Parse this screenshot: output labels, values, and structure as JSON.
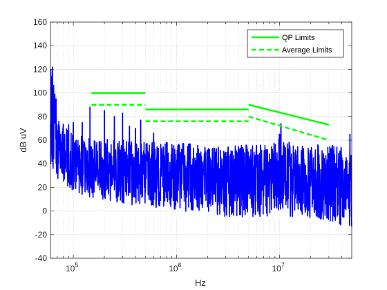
{
  "chart_data": {
    "type": "line",
    "title": "",
    "xlabel": "Hz",
    "ylabel": "dB uV",
    "x_scale": "log",
    "xlim": [
      60000,
      50000000
    ],
    "ylim": [
      -40,
      160
    ],
    "x_ticks": [
      {
        "value": 100000,
        "base": "10",
        "exp": "5"
      },
      {
        "value": 1000000,
        "base": "10",
        "exp": "6"
      },
      {
        "value": 10000000,
        "base": "10",
        "exp": "7"
      }
    ],
    "y_ticks": [
      -40,
      -20,
      0,
      20,
      40,
      60,
      80,
      100,
      120,
      140,
      160
    ],
    "grid": true,
    "legend_position": "top-right",
    "colors": {
      "measurement": "#0000ff",
      "limits": "#00ff00"
    },
    "series": [
      {
        "name": "QP Limits",
        "style": "solid",
        "segments": [
          [
            [
              150000,
              100
            ],
            [
              500000,
              100
            ]
          ],
          [
            [
              500000,
              86
            ],
            [
              5000000,
              86
            ]
          ],
          [
            [
              5000000,
              90
            ],
            [
              30000000,
              73
            ]
          ]
        ]
      },
      {
        "name": "Average Limits",
        "style": "dashed",
        "segments": [
          [
            [
              150000,
              90
            ],
            [
              500000,
              90
            ]
          ],
          [
            [
              500000,
              76
            ],
            [
              5000000,
              76
            ]
          ],
          [
            [
              5000000,
              80
            ],
            [
              30000000,
              60
            ]
          ]
        ]
      },
      {
        "style": "noisy-spectrum",
        "envelope": [
          {
            "x": 60000,
            "top": 136,
            "bottom": 40
          },
          {
            "x": 70000,
            "top": 80,
            "bottom": 28
          },
          {
            "x": 100000,
            "top": 64,
            "bottom": 15
          },
          {
            "x": 300000,
            "top": 60,
            "bottom": 6
          },
          {
            "x": 1000000,
            "top": 58,
            "bottom": 0
          },
          {
            "x": 3000000,
            "top": 55,
            "bottom": -5
          },
          {
            "x": 8000000,
            "top": 57,
            "bottom": -5
          },
          {
            "x": 10500000,
            "top": 75,
            "bottom": 0
          },
          {
            "x": 13000000,
            "top": 57,
            "bottom": -5
          },
          {
            "x": 50000000,
            "top": 55,
            "bottom": -15
          }
        ],
        "spikes": [
          [
            63000,
            122
          ],
          [
            68000,
            95
          ],
          [
            90000,
            73
          ],
          [
            100000,
            75
          ],
          [
            122000,
            75
          ],
          [
            145000,
            88
          ],
          [
            200000,
            85
          ],
          [
            250000,
            80
          ],
          [
            300000,
            83
          ],
          [
            350000,
            72
          ],
          [
            400000,
            70
          ],
          [
            450000,
            77
          ],
          [
            600000,
            66
          ],
          [
            800000,
            58
          ],
          [
            10300000,
            74
          ],
          [
            48000000,
            65
          ]
        ]
      }
    ]
  }
}
